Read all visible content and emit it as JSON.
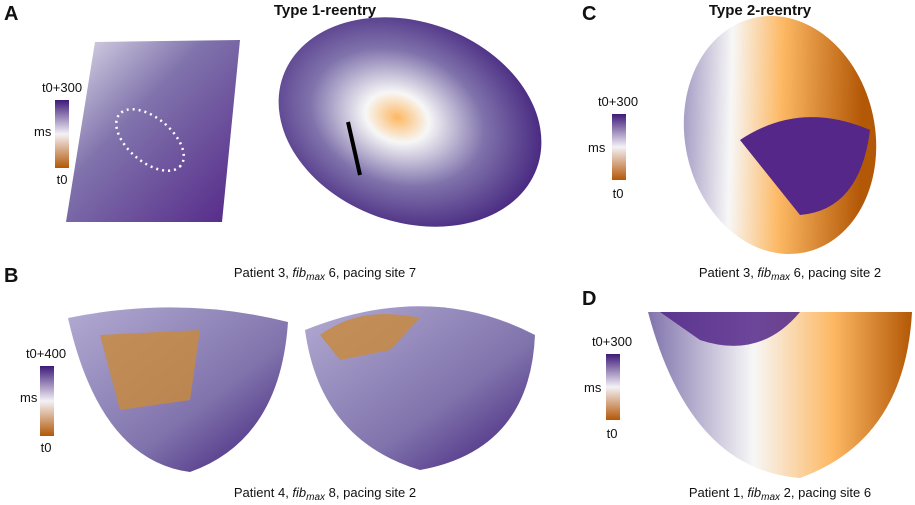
{
  "panels": [
    {
      "letter": "A",
      "title": "Type 1-reentry",
      "colorbar": {
        "top": "t0+300",
        "unit": "ms",
        "bottom": "t0"
      },
      "caption": {
        "before": "Patient 3, ",
        "fib": "fib",
        "sub": "max",
        "after": " 6, pacing site 7"
      }
    },
    {
      "letter": "B",
      "colorbar": {
        "top": "t0+400",
        "unit": "ms",
        "bottom": "t0"
      },
      "caption": {
        "before": "Patient 4, ",
        "fib": "fib",
        "sub": "max",
        "after": " 8, pacing site 2"
      }
    },
    {
      "letter": "C",
      "title": "Type 2-reentry",
      "colorbar": {
        "top": "t0+300",
        "unit": "ms",
        "bottom": "t0"
      },
      "caption": {
        "before": "Patient 3, ",
        "fib": "fib",
        "sub": "max",
        "after": " 6, pacing site 2"
      }
    },
    {
      "letter": "D",
      "colorbar": {
        "top": "t0+300",
        "unit": "ms",
        "bottom": "t0"
      },
      "caption": {
        "before": "Patient 1, ",
        "fib": "fib",
        "sub": "max",
        "after": " 2, pacing site 6"
      }
    }
  ]
}
